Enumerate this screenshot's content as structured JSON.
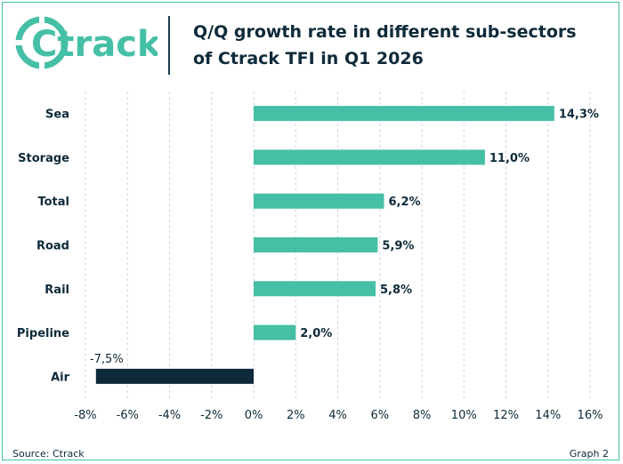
{
  "brand": {
    "logo_text": "Ctrack",
    "colors": {
      "accent": "#45bfa6",
      "dark": "#0e2a3a",
      "negative_bar": "#0e2a3a"
    }
  },
  "header": {
    "title_line1": "Q/Q growth rate in different sub-sectors",
    "title_line2": "of Ctrack TFI in Q1 2026"
  },
  "footer": {
    "source": "Source: Ctrack",
    "graph_label": "Graph 2"
  },
  "chart_data": {
    "type": "bar",
    "orientation": "horizontal",
    "categories": [
      "Sea",
      "Storage",
      "Total",
      "Road",
      "Rail",
      "Pipeline",
      "Air"
    ],
    "values": [
      14.3,
      11.0,
      6.2,
      5.9,
      5.8,
      2.0,
      -7.5
    ],
    "data_labels": [
      "14,3%",
      "11,0%",
      "6,2%",
      "5,9%",
      "5,8%",
      "2,0%",
      "-7,5%"
    ],
    "xlim": [
      -8,
      16
    ],
    "xticks": [
      -8,
      -6,
      -4,
      -2,
      0,
      2,
      4,
      6,
      8,
      10,
      12,
      14,
      16
    ],
    "xtick_labels": [
      "-8%",
      "-6%",
      "-4%",
      "-2%",
      "0%",
      "2%",
      "4%",
      "6%",
      "8%",
      "10%",
      "12%",
      "14%",
      "16%"
    ],
    "grid": true,
    "legend": "none",
    "colors": {
      "positive": "#45bfa6",
      "negative": "#0e2a3a",
      "grid": "#cfd6da",
      "text": "#0e2a3a"
    }
  }
}
